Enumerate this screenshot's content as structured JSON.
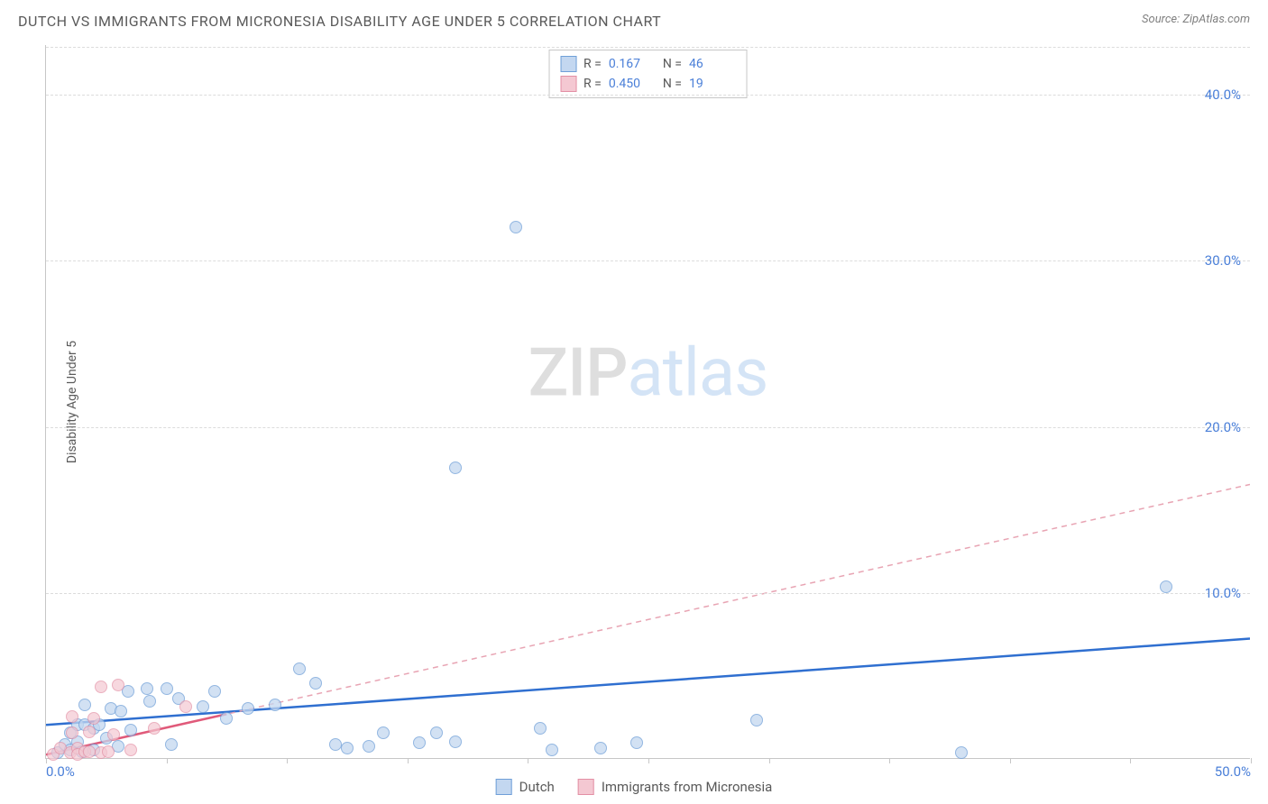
{
  "title": "DUTCH VS IMMIGRANTS FROM MICRONESIA DISABILITY AGE UNDER 5 CORRELATION CHART",
  "source_label": "Source:",
  "source_value": "ZipAtlas.com",
  "y_axis_label": "Disability Age Under 5",
  "watermark_zip": "ZIP",
  "watermark_atlas": "atlas",
  "chart": {
    "type": "scatter",
    "background_color": "#ffffff",
    "grid_color": "#dcdcdc",
    "axis_color": "#c7c7c7",
    "tick_label_color": "#4a7fd8",
    "tick_fontsize": 15,
    "xlim": [
      0,
      50
    ],
    "ylim": [
      0,
      43
    ],
    "x_ticks": [
      0,
      5,
      10,
      15,
      20,
      25,
      30,
      35,
      40,
      45,
      50
    ],
    "x_tick_labels": {
      "0": "0.0%",
      "50": "50.0%"
    },
    "y_ticks": [
      10,
      20,
      30,
      40
    ],
    "y_tick_labels": {
      "10": "10.0%",
      "20": "20.0%",
      "30": "30.0%",
      "40": "40.0%"
    },
    "point_radius": 7,
    "point_stroke_width": 1,
    "series": [
      {
        "name": "Dutch",
        "fill": "#c3d7f0",
        "stroke": "#6f9fd8",
        "fill_opacity": 0.75,
        "R": "0.167",
        "N": "46",
        "trend": {
          "x1": 0,
          "y1": 2.0,
          "x2": 50,
          "y2": 7.2,
          "color": "#2f6fd0",
          "width": 2.5,
          "dash": "none"
        },
        "points": [
          [
            0.5,
            0.3
          ],
          [
            0.8,
            0.8
          ],
          [
            1.0,
            1.5
          ],
          [
            1.0,
            0.5
          ],
          [
            1.3,
            1.0
          ],
          [
            1.3,
            2.0
          ],
          [
            1.5,
            0.4
          ],
          [
            1.6,
            2.0
          ],
          [
            1.6,
            3.2
          ],
          [
            2.0,
            0.5
          ],
          [
            2.0,
            1.8
          ],
          [
            2.2,
            2.0
          ],
          [
            2.5,
            1.2
          ],
          [
            2.7,
            3.0
          ],
          [
            3.0,
            0.7
          ],
          [
            3.1,
            2.8
          ],
          [
            3.4,
            4.0
          ],
          [
            3.5,
            1.7
          ],
          [
            4.2,
            4.2
          ],
          [
            4.3,
            3.4
          ],
          [
            5.0,
            4.2
          ],
          [
            5.2,
            0.8
          ],
          [
            5.5,
            3.6
          ],
          [
            6.5,
            3.1
          ],
          [
            7.0,
            4.0
          ],
          [
            7.5,
            2.4
          ],
          [
            8.4,
            3.0
          ],
          [
            9.5,
            3.2
          ],
          [
            10.5,
            5.4
          ],
          [
            11.2,
            4.5
          ],
          [
            12.0,
            0.8
          ],
          [
            12.5,
            0.6
          ],
          [
            13.4,
            0.7
          ],
          [
            14.0,
            1.5
          ],
          [
            15.5,
            0.9
          ],
          [
            16.2,
            1.5
          ],
          [
            17.0,
            1.0
          ],
          [
            17.0,
            17.5
          ],
          [
            19.5,
            32.0
          ],
          [
            20.5,
            1.8
          ],
          [
            21.0,
            0.5
          ],
          [
            23.0,
            0.6
          ],
          [
            24.5,
            0.9
          ],
          [
            29.5,
            2.3
          ],
          [
            38.0,
            0.3
          ],
          [
            46.5,
            10.3
          ]
        ]
      },
      {
        "name": "Immigrants from Micronesia",
        "fill": "#f4c8d2",
        "stroke": "#e38fa4",
        "fill_opacity": 0.7,
        "R": "0.450",
        "N": "19",
        "trend": {
          "x1": 0,
          "y1": 0.2,
          "x2": 50,
          "y2": 16.5,
          "color": "#e8a4b3",
          "width": 1.5,
          "dash": "6,5"
        },
        "solid_segment": {
          "x1": 0,
          "y1": 0.2,
          "x2": 7.5,
          "y2": 2.65,
          "color": "#e05a7a",
          "width": 2.5
        },
        "points": [
          [
            0.3,
            0.2
          ],
          [
            0.6,
            0.6
          ],
          [
            1.0,
            0.3
          ],
          [
            1.1,
            1.5
          ],
          [
            1.1,
            2.5
          ],
          [
            1.3,
            0.6
          ],
          [
            1.3,
            0.2
          ],
          [
            1.6,
            0.4
          ],
          [
            1.8,
            1.6
          ],
          [
            1.8,
            0.4
          ],
          [
            2.0,
            2.4
          ],
          [
            2.3,
            0.3
          ],
          [
            2.3,
            4.3
          ],
          [
            2.6,
            0.4
          ],
          [
            2.8,
            1.4
          ],
          [
            3.0,
            4.4
          ],
          [
            3.5,
            0.5
          ],
          [
            4.5,
            1.8
          ],
          [
            5.8,
            3.1
          ]
        ]
      }
    ]
  },
  "stats_box": {
    "r_label": "R",
    "n_label": "N",
    "eq": "="
  },
  "legend": {
    "items": [
      "Dutch",
      "Immigrants from Micronesia"
    ]
  }
}
